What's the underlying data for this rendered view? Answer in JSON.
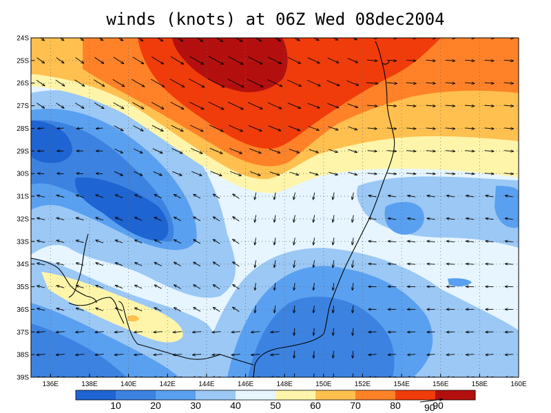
{
  "title": "winds (knots) at 06Z Wed 08dec2004",
  "map": {
    "lat_labels": [
      "24S",
      "25S",
      "26S",
      "27S",
      "28S",
      "29S",
      "30S",
      "31S",
      "32S",
      "33S",
      "34S",
      "35S",
      "36S",
      "37S",
      "38S",
      "39S"
    ],
    "lon_labels": [
      "136E",
      "138E",
      "140E",
      "142E",
      "144E",
      "146E",
      "148E",
      "150E",
      "152E",
      "154E",
      "156E",
      "158E",
      "160E"
    ],
    "lat_range": [
      -39,
      -24
    ],
    "lon_range": [
      135,
      160
    ],
    "grid": "dotted"
  },
  "colorbar": {
    "labels": [
      "10",
      "20",
      "30",
      "40",
      "50",
      "60",
      "70",
      "80",
      "90"
    ],
    "colors": [
      "#1e64d2",
      "#3c82e1",
      "#5aa0f0",
      "#9bc8f5",
      "#e6f5ff",
      "#fff5aa",
      "#ffc050",
      "#ff8228",
      "#f03c0a",
      "#b40f0f"
    ],
    "reference_vector_label": "90"
  },
  "legend_levels": [
    10,
    20,
    30,
    40,
    50,
    60,
    70,
    80,
    90
  ]
}
